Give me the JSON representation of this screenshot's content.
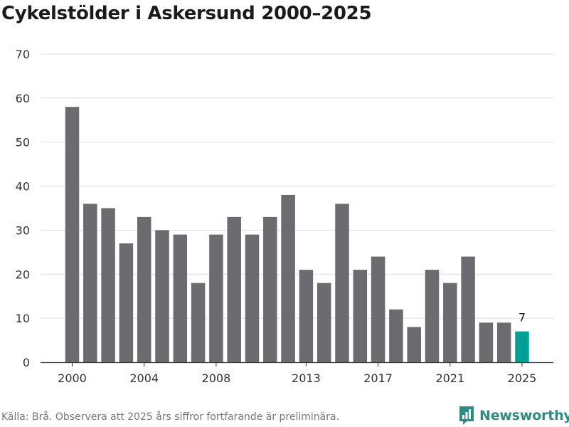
{
  "title": "Cykelstölder i Askersund 2000–2025",
  "footer": {
    "source": "Källa: Brå. Observera att 2025 års siffror fortfarande är preliminära."
  },
  "brand": {
    "name": "Newsworthy",
    "icon": "newsworthy-logo-icon",
    "color": "#2d8d82"
  },
  "colors": {
    "bar": "#6b6b70",
    "highlight": "#00a195",
    "grid": "#dddddd",
    "axis": "#333333"
  },
  "chart_data": {
    "type": "bar",
    "categories": [
      "2000",
      "2001",
      "2002",
      "2003",
      "2004",
      "2005",
      "2006",
      "2007",
      "2008",
      "2009",
      "2010",
      "2011",
      "2012",
      "2013",
      "2014",
      "2015",
      "2016",
      "2017",
      "2018",
      "2019",
      "2020",
      "2021",
      "2022",
      "2023",
      "2024",
      "2025"
    ],
    "values": [
      58,
      36,
      35,
      27,
      33,
      30,
      29,
      18,
      29,
      33,
      29,
      33,
      38,
      21,
      18,
      36,
      21,
      24,
      12,
      8,
      21,
      18,
      24,
      9,
      9,
      7
    ],
    "highlight": {
      "category": "2025",
      "label": "7"
    },
    "x_tick_labels": [
      "2000",
      "2004",
      "2008",
      "2013",
      "2017",
      "2021",
      "2025"
    ],
    "y_ticks": [
      0,
      10,
      20,
      30,
      40,
      50,
      60,
      70
    ],
    "ylim": [
      0,
      70
    ],
    "grid": true,
    "xlabel": "",
    "ylabel": ""
  }
}
